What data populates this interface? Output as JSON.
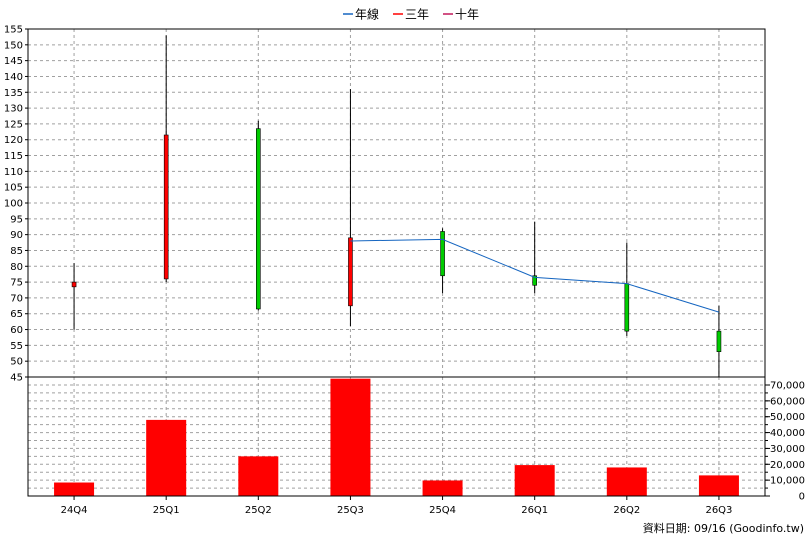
{
  "chart_data": {
    "type": "candlestick",
    "categories": [
      "24Q4",
      "25Q1",
      "25Q2",
      "25Q3",
      "25Q4",
      "26Q1",
      "26Q2",
      "26Q3"
    ],
    "price_axis": {
      "ylim": [
        45,
        155
      ],
      "ticks": [
        155,
        150,
        145,
        140,
        135,
        130,
        125,
        120,
        115,
        110,
        105,
        100,
        95,
        90,
        85,
        80,
        75,
        70,
        65,
        60,
        55,
        50,
        45
      ]
    },
    "candles": [
      {
        "period": "24Q4",
        "open": 73.5,
        "close": 75,
        "high": 81,
        "low": 60,
        "color": "#ff0000"
      },
      {
        "period": "25Q1",
        "open": 76,
        "close": 121.5,
        "high": 153,
        "low": 75,
        "color": "#ff0000"
      },
      {
        "period": "25Q2",
        "open": 123.5,
        "close": 66.5,
        "high": 126,
        "low": 66,
        "color": "#00cc00"
      },
      {
        "period": "25Q3",
        "open": 67.5,
        "close": 89,
        "high": 136,
        "low": 61,
        "color": "#ff0000"
      },
      {
        "period": "25Q4",
        "open": 91,
        "close": 77,
        "high": 92,
        "low": 71.5,
        "color": "#00cc00"
      },
      {
        "period": "26Q1",
        "open": 77,
        "close": 74,
        "high": 94,
        "low": 71.5,
        "color": "#00cc00"
      },
      {
        "period": "26Q2",
        "open": 74.5,
        "close": 59.5,
        "high": 87.5,
        "low": 58,
        "color": "#00cc00"
      },
      {
        "period": "26Q3",
        "open": 59.5,
        "close": 53,
        "high": 67.5,
        "low": 45,
        "color": "#00cc00"
      }
    ],
    "lines": [
      {
        "name": "年線",
        "color": "#1565c0",
        "values": [
          null,
          null,
          null,
          88,
          88.5,
          76.5,
          74.5,
          65.5
        ]
      },
      {
        "name": "三年",
        "color": "#ff0000",
        "values": []
      },
      {
        "name": "十年",
        "color": "#c2185b",
        "values": []
      }
    ],
    "volume_axis": {
      "ylim": [
        0,
        70000
      ],
      "ticks": [
        "70,000",
        "60,000",
        "50,000",
        "40,000",
        "30,000",
        "20,000",
        "10,000",
        "0"
      ],
      "tick_values": [
        70000,
        60000,
        50000,
        40000,
        30000,
        20000,
        10000,
        0
      ]
    },
    "volume": {
      "color": "#ff0000",
      "values": [
        8500,
        48000,
        25000,
        74000,
        9800,
        19500,
        18000,
        13000
      ]
    },
    "grid": true,
    "legend_position": "top-center"
  },
  "legend": [
    {
      "label": "年線",
      "color": "#1565c0"
    },
    {
      "label": "三年",
      "color": "#ff0000"
    },
    {
      "label": "十年",
      "color": "#c2185b"
    }
  ],
  "footer": {
    "text": "資料日期: 09/16  (Goodinfo.tw)"
  }
}
